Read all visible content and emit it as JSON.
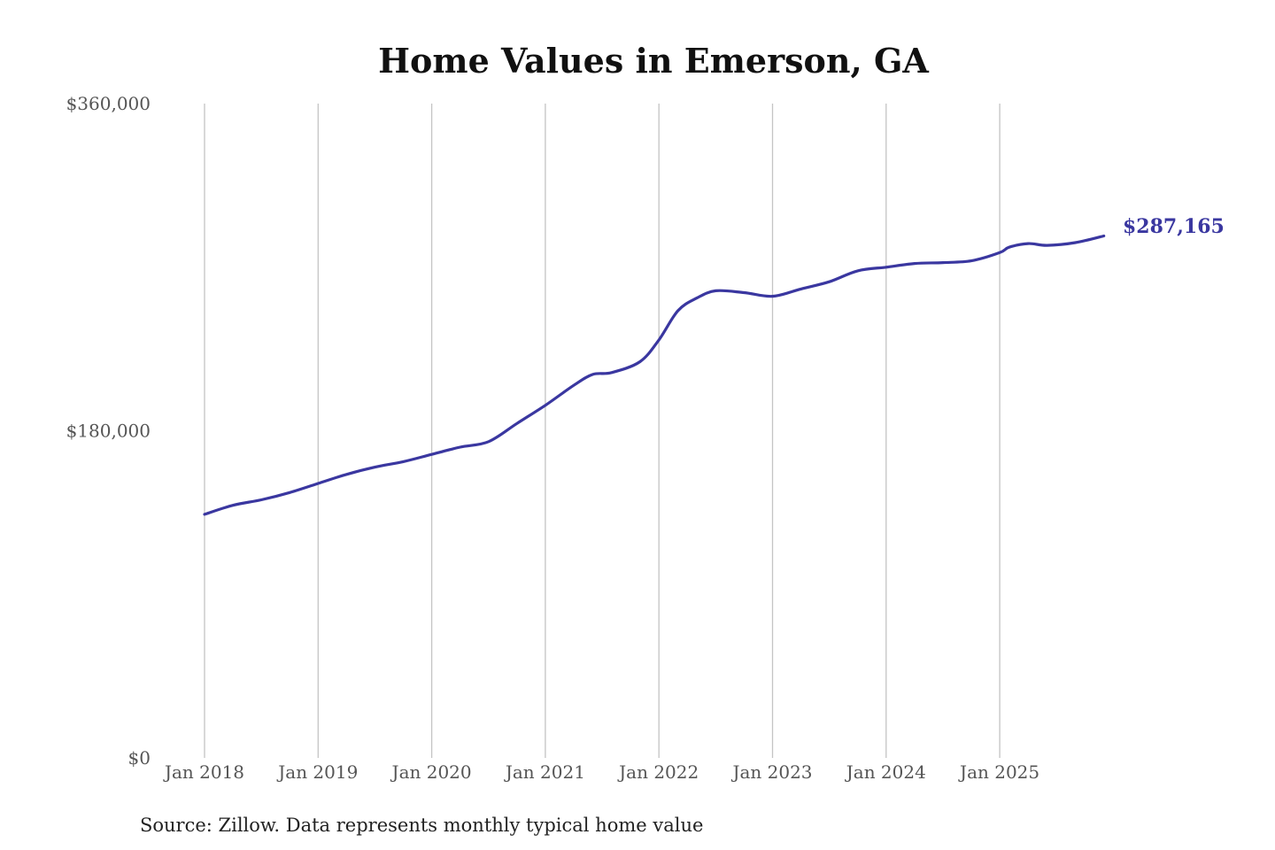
{
  "colors": {
    "line": "#3a37a0",
    "grid": "#c4c4c4",
    "title": "#111111",
    "tick": "#555555",
    "source": "#222222"
  },
  "chart_data": {
    "type": "line",
    "title": "Home Values in Emerson, GA",
    "xlabel": "",
    "ylabel": "",
    "ylim": [
      0,
      360000
    ],
    "xlim": [
      "2018-01",
      "2025-12"
    ],
    "grid": "vertical at yearly ticks",
    "legend": "none",
    "yticks": [
      {
        "value": 0,
        "label": "$0"
      },
      {
        "value": 180000,
        "label": "$180,000"
      },
      {
        "value": 360000,
        "label": "$360,000"
      }
    ],
    "xticks": [
      {
        "date": "2018-01",
        "label": "Jan 2018"
      },
      {
        "date": "2019-01",
        "label": "Jan 2019"
      },
      {
        "date": "2020-01",
        "label": "Jan 2020"
      },
      {
        "date": "2021-01",
        "label": "Jan 2021"
      },
      {
        "date": "2022-01",
        "label": "Jan 2022"
      },
      {
        "date": "2023-01",
        "label": "Jan 2023"
      },
      {
        "date": "2024-01",
        "label": "Jan 2024"
      },
      {
        "date": "2025-01",
        "label": "Jan 2025"
      }
    ],
    "end_label": "$287,165",
    "source": "Source: Zillow. Data represents monthly typical home value",
    "series": [
      {
        "values": [
          {
            "date": "2018-01",
            "value": 134000
          },
          {
            "date": "2018-04",
            "value": 139000
          },
          {
            "date": "2018-07",
            "value": 142000
          },
          {
            "date": "2018-10",
            "value": 146000
          },
          {
            "date": "2019-01",
            "value": 151000
          },
          {
            "date": "2019-04",
            "value": 156000
          },
          {
            "date": "2019-07",
            "value": 160000
          },
          {
            "date": "2019-10",
            "value": 163000
          },
          {
            "date": "2020-01",
            "value": 167000
          },
          {
            "date": "2020-04",
            "value": 171000
          },
          {
            "date": "2020-07",
            "value": 174000
          },
          {
            "date": "2020-10",
            "value": 184000
          },
          {
            "date": "2021-01",
            "value": 194000
          },
          {
            "date": "2021-04",
            "value": 205000
          },
          {
            "date": "2021-06",
            "value": 211000
          },
          {
            "date": "2021-08",
            "value": 212000
          },
          {
            "date": "2021-11",
            "value": 218000
          },
          {
            "date": "2022-01",
            "value": 230000
          },
          {
            "date": "2022-03",
            "value": 246000
          },
          {
            "date": "2022-05",
            "value": 253000
          },
          {
            "date": "2022-07",
            "value": 257000
          },
          {
            "date": "2022-10",
            "value": 256000
          },
          {
            "date": "2023-01",
            "value": 254000
          },
          {
            "date": "2023-04",
            "value": 258000
          },
          {
            "date": "2023-07",
            "value": 262000
          },
          {
            "date": "2023-10",
            "value": 268000
          },
          {
            "date": "2024-01",
            "value": 270000
          },
          {
            "date": "2024-04",
            "value": 272000
          },
          {
            "date": "2024-07",
            "value": 272500
          },
          {
            "date": "2024-10",
            "value": 273500
          },
          {
            "date": "2025-01",
            "value": 278000
          },
          {
            "date": "2025-02",
            "value": 281000
          },
          {
            "date": "2025-04",
            "value": 283000
          },
          {
            "date": "2025-06",
            "value": 282000
          },
          {
            "date": "2025-09",
            "value": 283500
          },
          {
            "date": "2025-12",
            "value": 287165
          }
        ]
      }
    ]
  }
}
